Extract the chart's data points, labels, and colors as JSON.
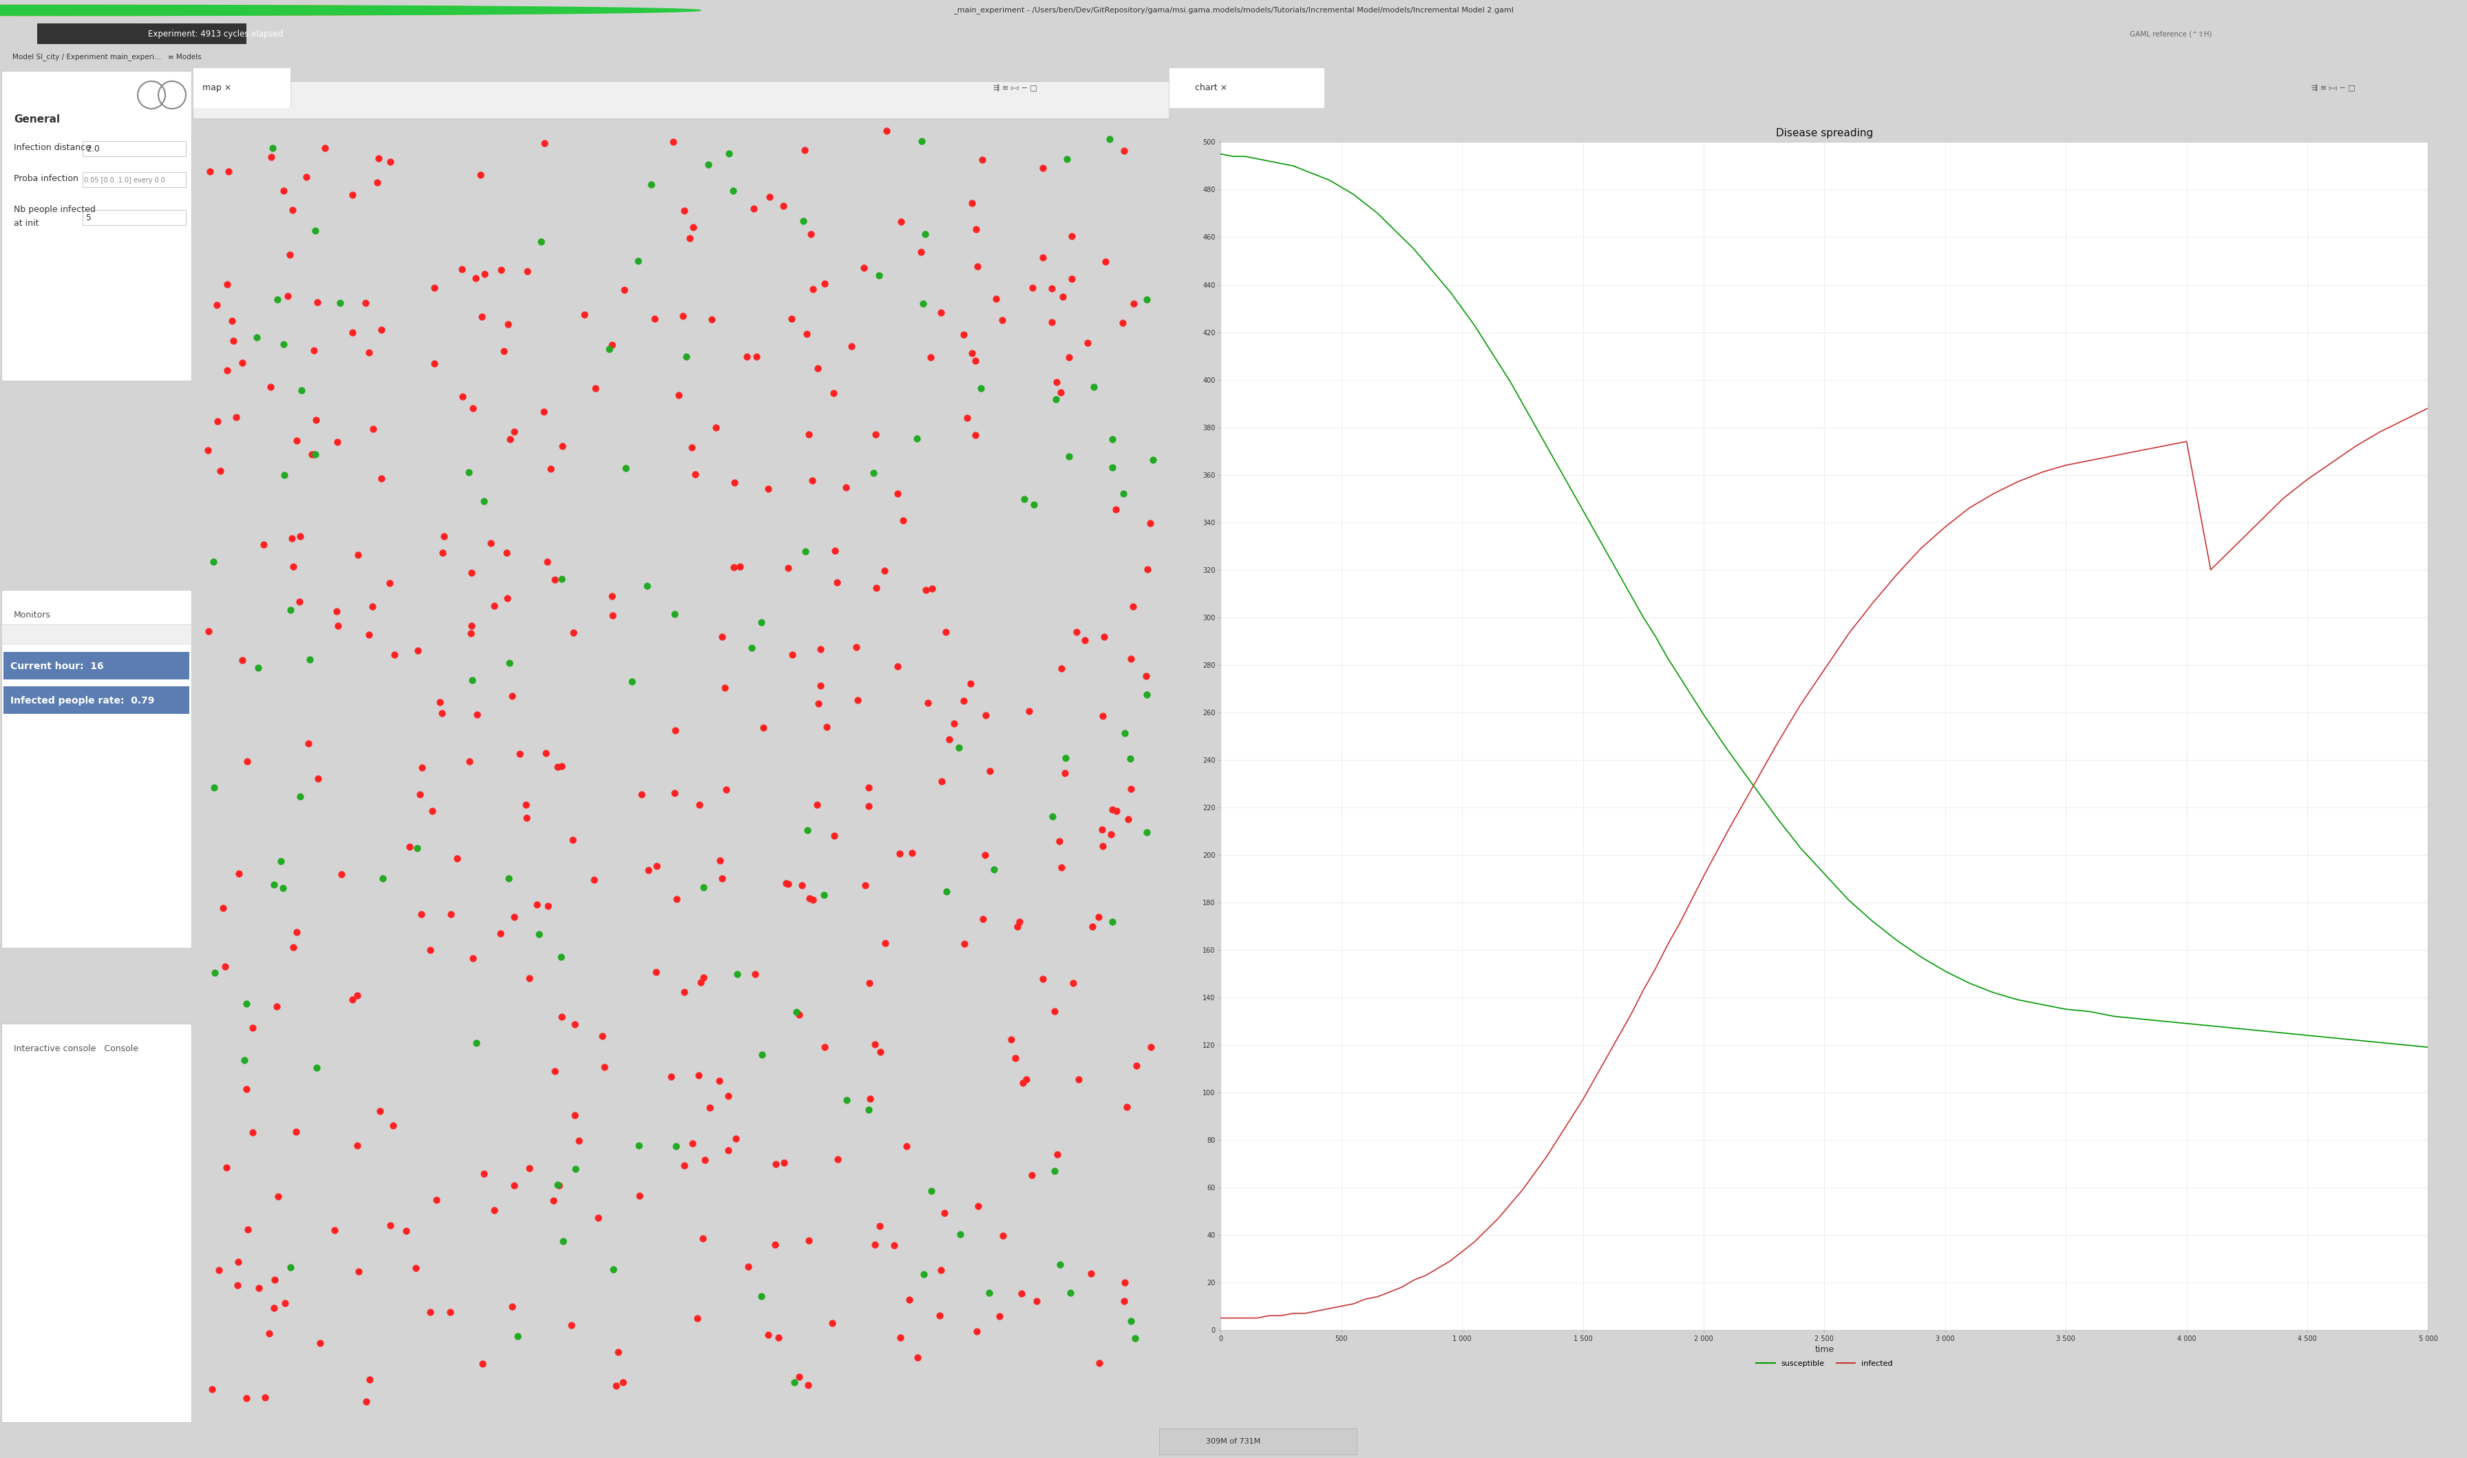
{
  "title": "Disease spreading",
  "xlabel": "time",
  "xlim": [
    0,
    5000
  ],
  "ylim": [
    0,
    500
  ],
  "xticks": [
    0,
    500,
    1000,
    1500,
    2000,
    2500,
    3000,
    3500,
    4000,
    4500,
    5000
  ],
  "xtick_labels": [
    "0",
    "500",
    "1 000",
    "1 500",
    "2 000",
    "2 500",
    "3 000",
    "3 500",
    "4 000",
    "4 500",
    "5 000"
  ],
  "yticks": [
    0,
    20,
    40,
    60,
    80,
    100,
    120,
    140,
    160,
    180,
    200,
    220,
    240,
    260,
    280,
    300,
    320,
    340,
    360,
    380,
    400,
    420,
    440,
    460,
    480,
    500
  ],
  "susceptible_color": "#009900",
  "infected_color": "#cc3333",
  "legend_labels": [
    "susceptible",
    "infected"
  ],
  "title_fontsize": 11,
  "tick_fontsize": 8,
  "label_fontsize": 9,
  "legend_fontsize": 8,
  "susceptible_x": [
    0,
    50,
    100,
    150,
    200,
    250,
    300,
    350,
    400,
    450,
    500,
    550,
    600,
    650,
    700,
    750,
    800,
    850,
    900,
    950,
    1000,
    1050,
    1100,
    1150,
    1200,
    1250,
    1300,
    1350,
    1400,
    1450,
    1500,
    1550,
    1600,
    1650,
    1700,
    1750,
    1800,
    1850,
    1900,
    1950,
    2000,
    2100,
    2200,
    2300,
    2400,
    2500,
    2600,
    2700,
    2800,
    2900,
    3000,
    3100,
    3200,
    3300,
    3400,
    3500,
    3600,
    3700,
    3800,
    3900,
    4000,
    4100,
    4200,
    4300,
    4400,
    4500,
    4600,
    4700,
    4800,
    4900,
    5000
  ],
  "susceptible_y": [
    495,
    494,
    494,
    493,
    492,
    491,
    490,
    488,
    486,
    484,
    481,
    478,
    474,
    470,
    465,
    460,
    455,
    449,
    443,
    437,
    430,
    423,
    415,
    407,
    399,
    390,
    381,
    372,
    363,
    354,
    345,
    336,
    327,
    318,
    309,
    300,
    292,
    283,
    275,
    267,
    259,
    244,
    230,
    216,
    203,
    192,
    181,
    172,
    164,
    157,
    151,
    146,
    142,
    139,
    137,
    135,
    134,
    132,
    131,
    130,
    129,
    128,
    127,
    126,
    125,
    124,
    123,
    122,
    121,
    120,
    119
  ],
  "infected_x": [
    0,
    50,
    100,
    150,
    200,
    250,
    300,
    350,
    400,
    450,
    500,
    550,
    600,
    650,
    700,
    750,
    800,
    850,
    900,
    950,
    1000,
    1050,
    1100,
    1150,
    1200,
    1250,
    1300,
    1350,
    1400,
    1450,
    1500,
    1550,
    1600,
    1650,
    1700,
    1750,
    1800,
    1850,
    1900,
    1950,
    2000,
    2100,
    2200,
    2300,
    2400,
    2500,
    2600,
    2700,
    2800,
    2900,
    3000,
    3100,
    3200,
    3300,
    3400,
    3500,
    3600,
    3700,
    3800,
    3900,
    4000,
    4100,
    4200,
    4300,
    4400,
    4500,
    4600,
    4700,
    4800,
    4900,
    5000
  ],
  "infected_y": [
    5,
    5,
    5,
    5,
    6,
    6,
    7,
    7,
    8,
    9,
    10,
    11,
    13,
    14,
    16,
    18,
    21,
    23,
    26,
    29,
    33,
    37,
    42,
    47,
    53,
    59,
    66,
    73,
    81,
    89,
    97,
    106,
    115,
    124,
    133,
    143,
    152,
    162,
    171,
    181,
    191,
    210,
    228,
    246,
    263,
    278,
    293,
    306,
    318,
    329,
    338,
    346,
    352,
    357,
    361,
    364,
    366,
    368,
    370,
    372,
    374,
    320,
    330,
    340,
    350,
    358,
    365,
    372,
    378,
    383,
    388
  ],
  "window_bg": "#d4d4d4",
  "titlebar_bg": "#e8e8e8",
  "toolbar_bg": "#ebebeb",
  "tabbar_bg": "#dcdcdc",
  "left_panel_bg": "#f5f5f5",
  "left_panel_section_bg": "#ffffff",
  "map_bg": "#ffffff",
  "chart_bg": "#ffffff",
  "monitor_bg": "#5b7db1",
  "border_color": "#c0c0c0",
  "status_bar_bg": "#e0e0e0",
  "dot_red": "#ff2222",
  "dot_green": "#22aa22",
  "dot_size": 55
}
